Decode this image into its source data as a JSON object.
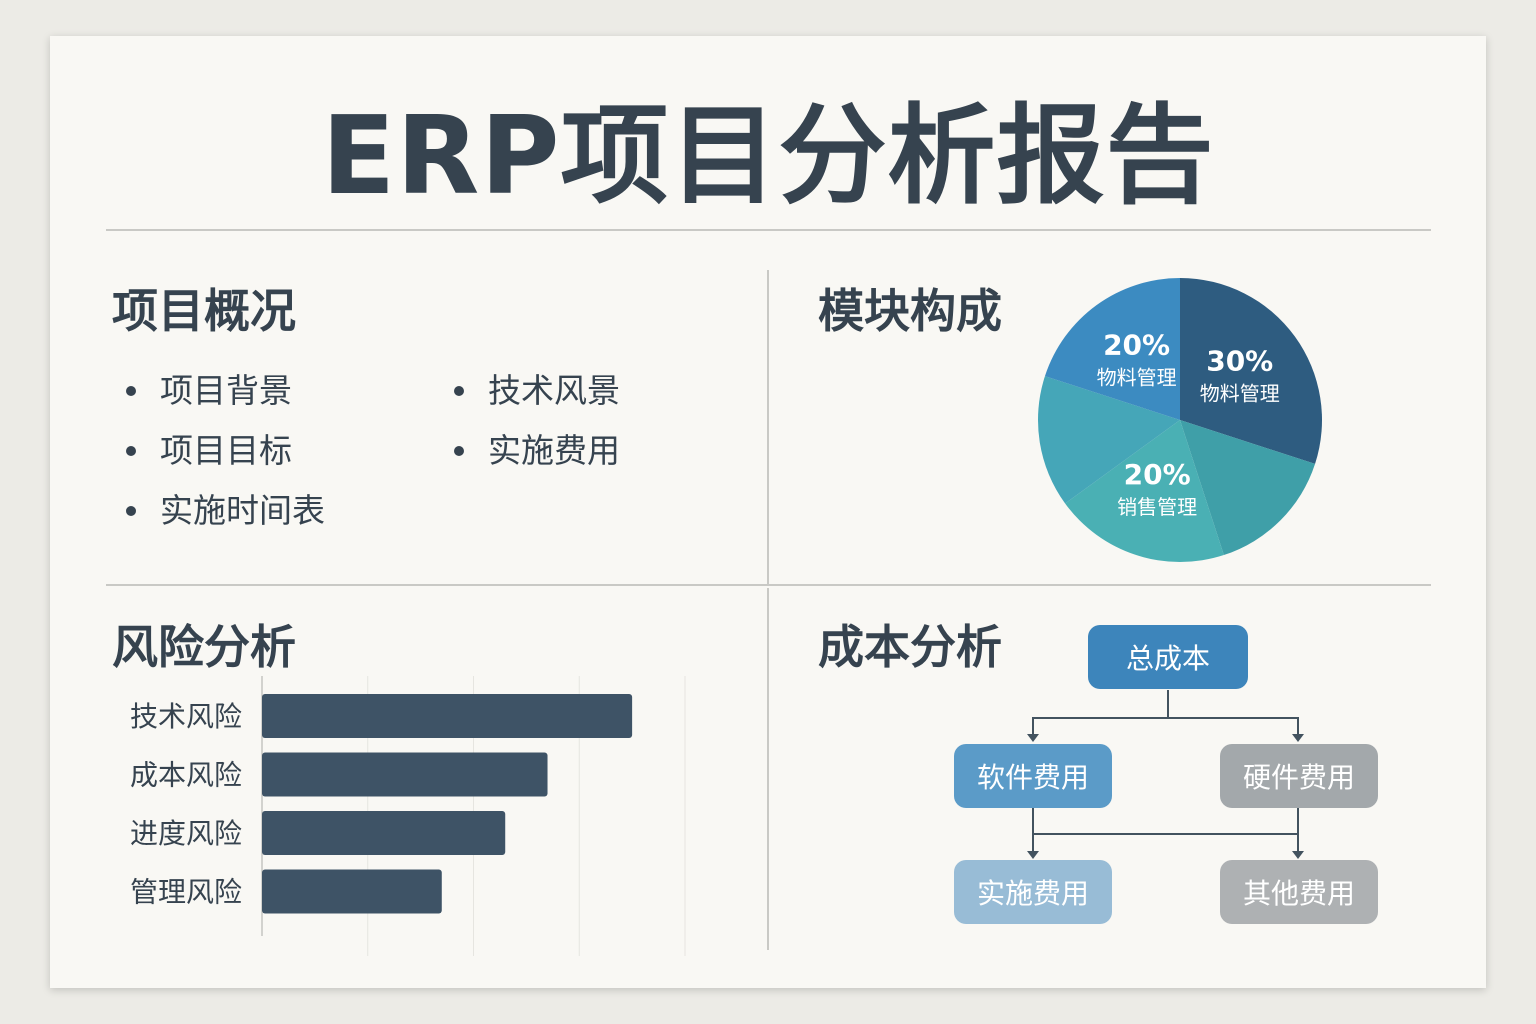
{
  "title": "ERP项目分析报告",
  "overview": {
    "title": "项目概况",
    "items": [
      "项目背景",
      "项目目标",
      "实施时间表",
      "技术风景",
      "实施费用"
    ]
  },
  "modules": {
    "title": "模块构成"
  },
  "risk": {
    "title": "风险分析"
  },
  "cost": {
    "title": "成本分析",
    "nodes": {
      "total": "总成本",
      "software": "软件费用",
      "hardware": "硬件费用",
      "implementation": "实施费用",
      "other": "其他费用"
    },
    "colors": {
      "total": "#3d85bb",
      "software": "#5b9bc8",
      "hardware": "#a3a8ab",
      "implementation": "#98bcd6",
      "other": "#aeb1b3"
    }
  },
  "chart_data": [
    {
      "type": "pie",
      "slices": [
        {
          "label": "物料管理",
          "value": 30,
          "value_label": "30%",
          "color": "#2e5c80"
        },
        {
          "label": "销售管理",
          "value": 20,
          "value_label": "20%",
          "color": "#4ab0b4"
        },
        {
          "label": "物料管理",
          "value": 20,
          "value_label": "20%",
          "color": "#3c8bc1"
        }
      ]
    },
    {
      "type": "bar",
      "orientation": "horizontal",
      "categories": [
        "技术风险",
        "成本风险",
        "进度风险",
        "管理风险"
      ],
      "values": [
        3.5,
        2.7,
        2.3,
        1.7
      ],
      "xlim": [
        0,
        4
      ],
      "grid": true,
      "color": "#3e5366"
    }
  ]
}
